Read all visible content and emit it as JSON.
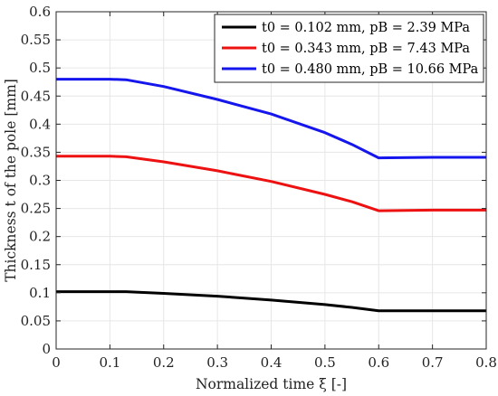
{
  "chart_data": {
    "type": "line",
    "title": "",
    "xlabel": "Normalized time ξ [-]",
    "ylabel": "Thickness t of the pole [mm]",
    "xlim": [
      0,
      0.8
    ],
    "ylim": [
      0,
      0.6
    ],
    "xticks": [
      0,
      0.1,
      0.2,
      0.3,
      0.4,
      0.5,
      0.6,
      0.7,
      0.8
    ],
    "yticks": [
      0,
      0.05,
      0.1,
      0.15,
      0.2,
      0.25,
      0.3,
      0.35,
      0.4,
      0.45,
      0.5,
      0.55,
      0.6
    ],
    "xtick_labels": [
      "0",
      "0.1",
      "0.2",
      "0.3",
      "0.4",
      "0.5",
      "0.6",
      "0.7",
      "0.8"
    ],
    "ytick_labels": [
      "0",
      "0.05",
      "0.1",
      "0.15",
      "0.2",
      "0.25",
      "0.3",
      "0.35",
      "0.4",
      "0.45",
      "0.5",
      "0.55",
      "0.6"
    ],
    "grid": true,
    "legend_position": "top-right",
    "series": [
      {
        "name": "t0 = 0.102 mm, pB = 2.39 MPa",
        "color": "#000000",
        "x": [
          0,
          0.1,
          0.13,
          0.2,
          0.3,
          0.4,
          0.5,
          0.55,
          0.6,
          0.7,
          0.8
        ],
        "y": [
          0.102,
          0.102,
          0.102,
          0.099,
          0.094,
          0.087,
          0.079,
          0.074,
          0.068,
          0.068,
          0.068
        ]
      },
      {
        "name": "t0 = 0.343 mm, pB = 7.43 MPa",
        "color": "#ee1111",
        "x": [
          0,
          0.1,
          0.13,
          0.2,
          0.3,
          0.4,
          0.5,
          0.55,
          0.6,
          0.7,
          0.8
        ],
        "y": [
          0.343,
          0.343,
          0.342,
          0.333,
          0.317,
          0.298,
          0.275,
          0.262,
          0.246,
          0.247,
          0.247
        ]
      },
      {
        "name": "t0 = 0.480 mm, pB = 10.66 MPa",
        "color": "#1515ee",
        "x": [
          0,
          0.1,
          0.13,
          0.2,
          0.3,
          0.4,
          0.5,
          0.55,
          0.6,
          0.7,
          0.8
        ],
        "y": [
          0.48,
          0.48,
          0.479,
          0.467,
          0.444,
          0.418,
          0.385,
          0.364,
          0.34,
          0.341,
          0.341
        ]
      }
    ]
  }
}
